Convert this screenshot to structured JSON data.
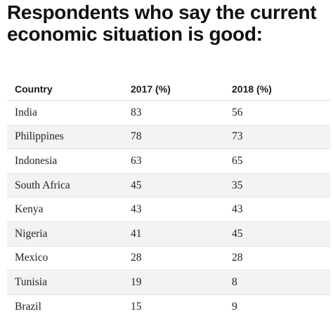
{
  "chart_data": {
    "type": "table",
    "title": "Respondents who say the current economic situation is good:",
    "columns": [
      "Country",
      "2017 (%)",
      "2018 (%)"
    ],
    "rows": [
      [
        "India",
        "83",
        "56"
      ],
      [
        "Philippines",
        "78",
        "73"
      ],
      [
        "Indonesia",
        "63",
        "65"
      ],
      [
        "South Africa",
        "45",
        "35"
      ],
      [
        "Kenya",
        "43",
        "43"
      ],
      [
        "Nigeria",
        "41",
        "45"
      ],
      [
        "Mexico",
        "28",
        "28"
      ],
      [
        "Tunisia",
        "19",
        "8"
      ],
      [
        "Brazil",
        "15",
        "9"
      ]
    ]
  }
}
